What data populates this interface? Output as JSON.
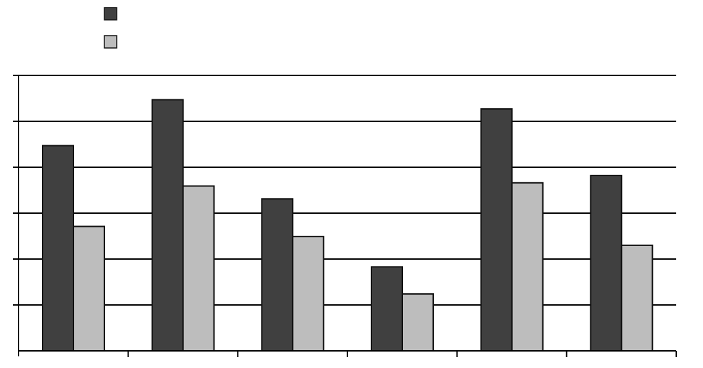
{
  "chart_data": {
    "type": "bar",
    "title": "",
    "xlabel": "",
    "ylabel": "",
    "categories": [
      "",
      "",
      "",
      "",
      "",
      ""
    ],
    "ylim": [
      0,
      6
    ],
    "y_tick_count": 6,
    "grid": true,
    "legend_placement": "top-left",
    "series": [
      {
        "name": "",
        "color": "#404040",
        "values": [
          4.47,
          5.47,
          3.31,
          1.83,
          5.27,
          3.82
        ]
      },
      {
        "name": "",
        "color": "#bdbdbd",
        "values": [
          2.71,
          3.59,
          2.49,
          1.24,
          3.66,
          2.3
        ]
      }
    ]
  }
}
